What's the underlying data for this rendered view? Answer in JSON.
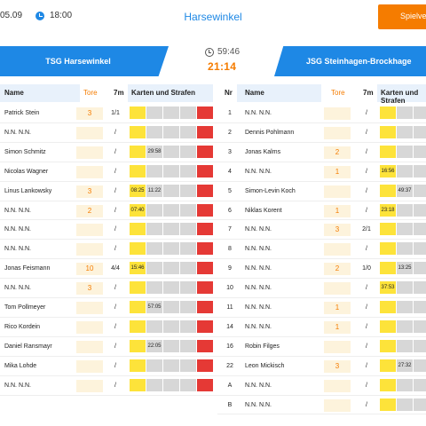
{
  "header": {
    "date": "05.09",
    "time": "18:00",
    "venue": "Harsewinkel",
    "action_button": "Spielver"
  },
  "match": {
    "home_team": "TSG Harsewinkel",
    "away_team": "JSG Steinhagen-Brockhage",
    "game_time": "59:46",
    "score": "21:14"
  },
  "columns": {
    "name": "Name",
    "goals": "Tore",
    "seven": "7m",
    "cards": "Karten und Strafen",
    "number": "Nr"
  },
  "home_players": [
    {
      "name": "Patrick Stein",
      "goals": "3",
      "seven": "1/1",
      "slot1": "",
      "slot2": "",
      "slot3": ""
    },
    {
      "name": "N.N. N.N.",
      "goals": "",
      "seven": "/",
      "slot1": "",
      "slot2": "",
      "slot3": ""
    },
    {
      "name": "Simon Schmitz",
      "goals": "",
      "seven": "/",
      "slot1": "",
      "slot2": "29:58",
      "slot3": ""
    },
    {
      "name": "Nicolas Wagner",
      "goals": "",
      "seven": "/",
      "slot1": "",
      "slot2": "",
      "slot3": ""
    },
    {
      "name": "Linus Lankowsky",
      "goals": "3",
      "seven": "/",
      "slot1": "08:25",
      "slot2": "11:22",
      "slot3": ""
    },
    {
      "name": "N.N. N.N.",
      "goals": "2",
      "seven": "/",
      "slot1": "07:40",
      "slot2": "",
      "slot3": ""
    },
    {
      "name": "N.N. N.N.",
      "goals": "",
      "seven": "/",
      "slot1": "",
      "slot2": "",
      "slot3": ""
    },
    {
      "name": "N.N. N.N.",
      "goals": "",
      "seven": "/",
      "slot1": "",
      "slot2": "",
      "slot3": ""
    },
    {
      "name": "Jonas Feismann",
      "goals": "10",
      "seven": "4/4",
      "slot1": "15:46",
      "slot2": "",
      "slot3": ""
    },
    {
      "name": "N.N. N.N.",
      "goals": "3",
      "seven": "/",
      "slot1": "",
      "slot2": "",
      "slot3": ""
    },
    {
      "name": "Tom Pollmeyer",
      "goals": "",
      "seven": "/",
      "slot1": "",
      "slot2": "57:05",
      "slot3": ""
    },
    {
      "name": "Rico Kordein",
      "goals": "",
      "seven": "/",
      "slot1": "",
      "slot2": "",
      "slot3": ""
    },
    {
      "name": "Daniel Ransmayr",
      "goals": "",
      "seven": "/",
      "slot1": "",
      "slot2": "22:05",
      "slot3": ""
    },
    {
      "name": "Mika Lohde",
      "goals": "",
      "seven": "/",
      "slot1": "",
      "slot2": "",
      "slot3": ""
    },
    {
      "name": "N.N. N.N.",
      "goals": "",
      "seven": "/",
      "slot1": "",
      "slot2": "",
      "slot3": ""
    }
  ],
  "away_players": [
    {
      "number": "1",
      "name": "N.N. N.N.",
      "goals": "",
      "seven": "/",
      "slot1": "",
      "slot2": ""
    },
    {
      "number": "2",
      "name": "Dennis Pohlmann",
      "goals": "",
      "seven": "/",
      "slot1": "",
      "slot2": ""
    },
    {
      "number": "3",
      "name": "Jonas Kalms",
      "goals": "2",
      "seven": "/",
      "slot1": "",
      "slot2": ""
    },
    {
      "number": "4",
      "name": "N.N. N.N.",
      "goals": "1",
      "seven": "/",
      "slot1": "16:56",
      "slot2": ""
    },
    {
      "number": "5",
      "name": "Simon-Levin Koch",
      "goals": "",
      "seven": "/",
      "slot1": "",
      "slot2": "49:37"
    },
    {
      "number": "6",
      "name": "Niklas Korent",
      "goals": "1",
      "seven": "/",
      "slot1": "23:18",
      "slot2": ""
    },
    {
      "number": "7",
      "name": "N.N. N.N.",
      "goals": "3",
      "seven": "2/1",
      "slot1": "",
      "slot2": ""
    },
    {
      "number": "8",
      "name": "N.N. N.N.",
      "goals": "",
      "seven": "/",
      "slot1": "",
      "slot2": ""
    },
    {
      "number": "9",
      "name": "N.N. N.N.",
      "goals": "2",
      "seven": "1/0",
      "slot1": "",
      "slot2": "13:25"
    },
    {
      "number": "10",
      "name": "N.N. N.N.",
      "goals": "",
      "seven": "/",
      "slot1": "37:53",
      "slot2": ""
    },
    {
      "number": "11",
      "name": "N.N. N.N.",
      "goals": "1",
      "seven": "/",
      "slot1": "",
      "slot2": ""
    },
    {
      "number": "14",
      "name": "N.N. N.N.",
      "goals": "1",
      "seven": "/",
      "slot1": "",
      "slot2": ""
    },
    {
      "number": "16",
      "name": "Robin Filges",
      "goals": "",
      "seven": "/",
      "slot1": "",
      "slot2": ""
    },
    {
      "number": "22",
      "name": "Leon Mickisch",
      "goals": "3",
      "seven": "/",
      "slot1": "",
      "slot2": "27:32"
    },
    {
      "number": "A",
      "name": "N.N. N.N.",
      "goals": "",
      "seven": "/",
      "slot1": "",
      "slot2": ""
    },
    {
      "number": "B",
      "name": "N.N. N.N.",
      "goals": "",
      "seven": "/",
      "slot1": "",
      "slot2": ""
    }
  ],
  "colors": {
    "primary_blue": "#1e88e5",
    "accent_orange": "#f57c00",
    "yellow_card": "#fde33a",
    "red_card": "#e53935",
    "empty_slot": "#d7d7d7",
    "goals_bg": "#fdf3dc"
  }
}
